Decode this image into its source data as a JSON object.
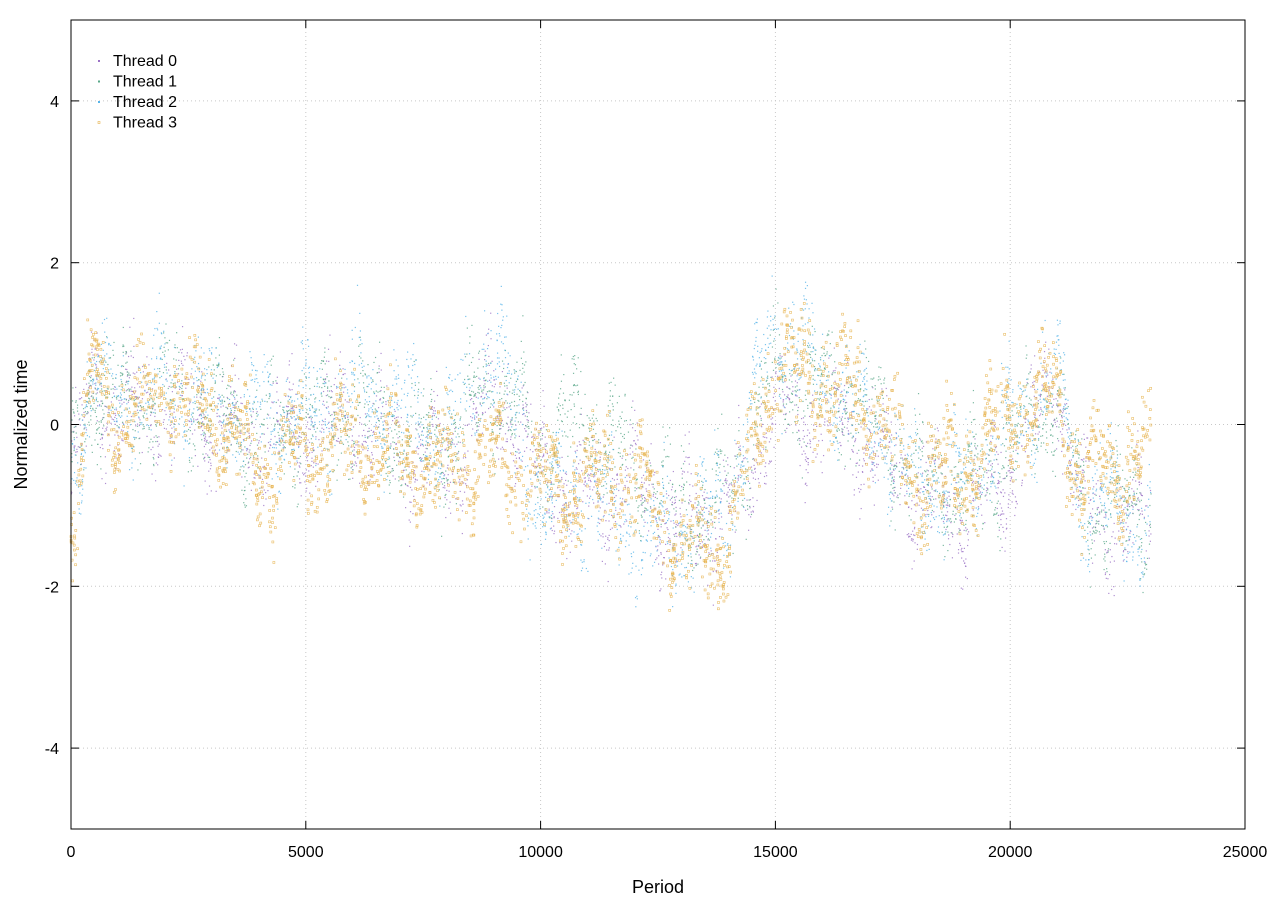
{
  "chart_data": {
    "type": "scatter",
    "xlabel": "Period",
    "ylabel": "Normalized time",
    "xlim": [
      0,
      25000
    ],
    "ylim": [
      -5,
      5
    ],
    "x_ticks": [
      0,
      5000,
      10000,
      15000,
      20000,
      25000
    ],
    "x_tick_labels": [
      "0",
      "5000",
      "10000",
      "15000",
      "20000",
      "25000"
    ],
    "y_ticks": [
      -4,
      -2,
      0,
      2,
      4
    ],
    "y_tick_labels": [
      "-4",
      "-2",
      "0",
      "2",
      "4"
    ],
    "grid": true,
    "legend_position": "top-left",
    "x_point_range": [
      0,
      23000
    ],
    "series": [
      {
        "name": "Thread 0",
        "color": "#9b72c6",
        "marker": "dot",
        "trend": [
          [
            0,
            -0.6
          ],
          [
            500,
            0.5
          ],
          [
            1000,
            0.1
          ],
          [
            2000,
            0.3
          ],
          [
            3000,
            0.0
          ],
          [
            4000,
            -0.2
          ],
          [
            5000,
            -0.1
          ],
          [
            6000,
            0.1
          ],
          [
            7000,
            -0.3
          ],
          [
            8000,
            -0.5
          ],
          [
            9000,
            0.4
          ],
          [
            10000,
            -0.6
          ],
          [
            11000,
            -0.9
          ],
          [
            12000,
            -0.7
          ],
          [
            13000,
            -1.2
          ],
          [
            14000,
            -1.1
          ],
          [
            15000,
            0.2
          ],
          [
            16000,
            0.1
          ],
          [
            17000,
            -0.2
          ],
          [
            18000,
            -0.8
          ],
          [
            19000,
            -1.1
          ],
          [
            20000,
            -0.6
          ],
          [
            21000,
            0.6
          ],
          [
            21500,
            -1.0
          ],
          [
            22000,
            -1.2
          ],
          [
            23000,
            -1.3
          ]
        ]
      },
      {
        "name": "Thread 1",
        "color": "#5aa88a",
        "marker": "dot",
        "trend": [
          [
            0,
            -0.7
          ],
          [
            500,
            0.6
          ],
          [
            1000,
            0.2
          ],
          [
            2000,
            0.4
          ],
          [
            3000,
            0.2
          ],
          [
            4000,
            -0.1
          ],
          [
            5000,
            0.1
          ],
          [
            6000,
            0.2
          ],
          [
            7000,
            -0.1
          ],
          [
            8000,
            -0.2
          ],
          [
            9000,
            0.6
          ],
          [
            10000,
            -0.3
          ],
          [
            11000,
            0.1
          ],
          [
            12000,
            -0.5
          ],
          [
            13000,
            -1.1
          ],
          [
            14000,
            -0.9
          ],
          [
            15000,
            0.6
          ],
          [
            16000,
            0.4
          ],
          [
            17000,
            0.2
          ],
          [
            18000,
            -0.6
          ],
          [
            19000,
            -0.9
          ],
          [
            20000,
            -0.3
          ],
          [
            21000,
            0.4
          ],
          [
            21500,
            -1.0
          ],
          [
            22000,
            -1.0
          ],
          [
            23000,
            -1.1
          ]
        ]
      },
      {
        "name": "Thread 2",
        "color": "#56b4e9",
        "marker": "dot",
        "trend": [
          [
            0,
            -0.5
          ],
          [
            500,
            0.6
          ],
          [
            1000,
            0.3
          ],
          [
            2000,
            0.4
          ],
          [
            3000,
            0.3
          ],
          [
            4000,
            0.1
          ],
          [
            5000,
            0.1
          ],
          [
            6000,
            0.4
          ],
          [
            7000,
            0.2
          ],
          [
            8000,
            -0.2
          ],
          [
            9000,
            1.0
          ],
          [
            10000,
            -1.0
          ],
          [
            11000,
            -0.8
          ],
          [
            12000,
            -1.4
          ],
          [
            13000,
            -1.4
          ],
          [
            14000,
            -1.0
          ],
          [
            15000,
            1.3
          ],
          [
            16000,
            0.6
          ],
          [
            17000,
            0.1
          ],
          [
            18000,
            -0.7
          ],
          [
            19000,
            -0.8
          ],
          [
            20000,
            0.0
          ],
          [
            21000,
            0.6
          ],
          [
            21500,
            -0.9
          ],
          [
            22000,
            -1.0
          ],
          [
            23000,
            -1.2
          ]
        ]
      },
      {
        "name": "Thread 3",
        "color": "#e6b34d",
        "marker": "square",
        "trend": [
          [
            0,
            -1.2
          ],
          [
            500,
            0.7
          ],
          [
            1000,
            0.0
          ],
          [
            2000,
            0.4
          ],
          [
            3000,
            0.2
          ],
          [
            4000,
            -0.6
          ],
          [
            5000,
            -0.3
          ],
          [
            6000,
            -0.2
          ],
          [
            7000,
            -0.4
          ],
          [
            8000,
            -0.5
          ],
          [
            9000,
            -0.4
          ],
          [
            10000,
            -0.7
          ],
          [
            11000,
            -0.8
          ],
          [
            12000,
            -0.6
          ],
          [
            13000,
            -1.5
          ],
          [
            14000,
            -1.4
          ],
          [
            15000,
            0.8
          ],
          [
            16000,
            0.5
          ],
          [
            17000,
            0.3
          ],
          [
            18000,
            -0.7
          ],
          [
            19000,
            -0.6
          ],
          [
            20000,
            0.2
          ],
          [
            21000,
            0.3
          ],
          [
            21500,
            -0.6
          ],
          [
            22000,
            -0.5
          ],
          [
            23000,
            -0.4
          ]
        ]
      }
    ]
  }
}
